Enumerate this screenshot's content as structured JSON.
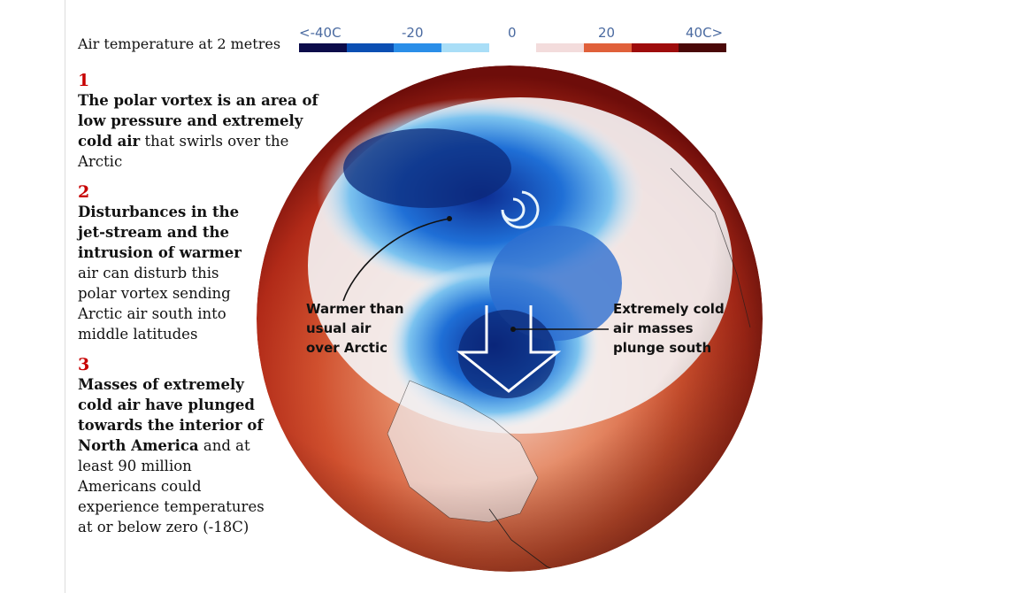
{
  "legend": {
    "title": "Air temperature at 2 metres",
    "labels": [
      "<-40C",
      "-20",
      "0",
      "20",
      "40C>"
    ],
    "colors": [
      "#0c0c4a",
      "#0b4fb3",
      "#2a8ee8",
      "#a9def7",
      "#ffffff",
      "#f3dcdc",
      "#e0603a",
      "#9e0c0c",
      "#4a0808"
    ]
  },
  "steps": [
    {
      "number": "1",
      "bold": "The polar vortex is an area of low pressure and extremely cold air",
      "plain": "that swirls over the Arctic"
    },
    {
      "number": "2",
      "bold": "Disturbances in the jet-stream and the intrusion of warmer",
      "plain": "air can disturb this polar vortex sending Arctic air south into middle latitudes"
    },
    {
      "number": "3",
      "bold": "Masses of extremely cold air have plunged towards the interior of North America",
      "plain": "and at least 90 million Americans could experience temperatures at or below zero (-18C)"
    }
  ],
  "annotations": {
    "warm": [
      "Warmer than",
      "usual air",
      "over Arctic"
    ],
    "cold": [
      "Extremely cold",
      "air masses",
      "plunge south"
    ]
  }
}
